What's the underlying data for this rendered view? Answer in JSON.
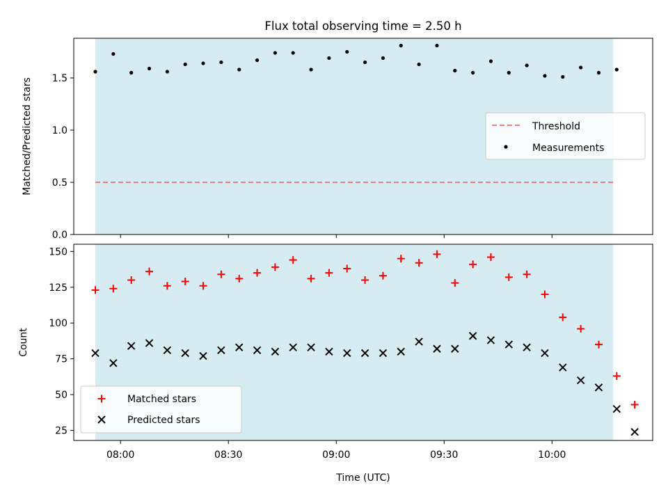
{
  "title": "Flux total observing time = 2.50 h",
  "colors": {
    "band": "#add8e6",
    "threshold": "#f08080",
    "matched": "#ff0000",
    "predicted": "#000000",
    "measurement": "#000000"
  },
  "chart_data": [
    {
      "type": "scatter",
      "ylabel": "Matched/Predicted stars",
      "xlim": [
        "07:47",
        "10:28"
      ],
      "ylim": [
        0.0,
        1.88
      ],
      "yticks": [
        "0.0",
        "0.5",
        "1.0",
        "1.5"
      ],
      "grid": false,
      "legend": "center-right",
      "observing_window": [
        "07:53",
        "10:17"
      ],
      "threshold": {
        "name": "Threshold",
        "y": 0.5,
        "x": [
          "07:53",
          "10:17"
        ]
      },
      "series": [
        {
          "name": "Measurements",
          "x": [
            "07:53",
            "07:58",
            "08:03",
            "08:08",
            "08:13",
            "08:18",
            "08:23",
            "08:28",
            "08:33",
            "08:38",
            "08:43",
            "08:48",
            "08:53",
            "08:58",
            "09:03",
            "09:08",
            "09:13",
            "09:18",
            "09:23",
            "09:28",
            "09:33",
            "09:38",
            "09:43",
            "09:48",
            "09:53",
            "09:58",
            "10:03",
            "10:08",
            "10:13",
            "10:18"
          ],
          "y": [
            1.56,
            1.73,
            1.55,
            1.59,
            1.56,
            1.63,
            1.64,
            1.65,
            1.58,
            1.67,
            1.74,
            1.74,
            1.58,
            1.69,
            1.75,
            1.65,
            1.69,
            1.81,
            1.63,
            1.81,
            1.57,
            1.55,
            1.66,
            1.55,
            1.62,
            1.52,
            1.51,
            1.6,
            1.55,
            1.58
          ]
        }
      ]
    },
    {
      "type": "scatter",
      "ylabel": "Count",
      "xlabel": "Time (UTC)",
      "xlim": [
        "07:47",
        "10:28"
      ],
      "ylim": [
        18,
        155
      ],
      "yticks": [
        "25",
        "50",
        "75",
        "100",
        "125",
        "150"
      ],
      "xticks": [
        "08:00",
        "08:30",
        "09:00",
        "09:30",
        "10:00"
      ],
      "grid": false,
      "legend": "lower-left",
      "observing_window": [
        "07:53",
        "10:17"
      ],
      "series": [
        {
          "name": "Matched stars",
          "x": [
            "07:53",
            "07:58",
            "08:03",
            "08:08",
            "08:13",
            "08:18",
            "08:23",
            "08:28",
            "08:33",
            "08:38",
            "08:43",
            "08:48",
            "08:53",
            "08:58",
            "09:03",
            "09:08",
            "09:13",
            "09:18",
            "09:23",
            "09:28",
            "09:33",
            "09:38",
            "09:43",
            "09:48",
            "09:53",
            "09:58",
            "10:03",
            "10:08",
            "10:13",
            "10:18",
            "10:23"
          ],
          "y": [
            123,
            124,
            130,
            136,
            126,
            129,
            126,
            134,
            131,
            135,
            139,
            144,
            131,
            135,
            138,
            130,
            133,
            145,
            142,
            148,
            128,
            141,
            146,
            132,
            134,
            120,
            104,
            96,
            85,
            63,
            43
          ]
        },
        {
          "name": "Predicted stars",
          "x": [
            "07:53",
            "07:58",
            "08:03",
            "08:08",
            "08:13",
            "08:18",
            "08:23",
            "08:28",
            "08:33",
            "08:38",
            "08:43",
            "08:48",
            "08:53",
            "08:58",
            "09:03",
            "09:08",
            "09:13",
            "09:18",
            "09:23",
            "09:28",
            "09:33",
            "09:38",
            "09:43",
            "09:48",
            "09:53",
            "09:58",
            "10:03",
            "10:08",
            "10:13",
            "10:18",
            "10:23"
          ],
          "y": [
            79,
            72,
            84,
            86,
            81,
            79,
            77,
            81,
            83,
            81,
            80,
            83,
            83,
            80,
            79,
            79,
            79,
            80,
            87,
            82,
            82,
            91,
            88,
            85,
            83,
            79,
            69,
            60,
            55,
            40,
            24
          ]
        }
      ]
    }
  ]
}
